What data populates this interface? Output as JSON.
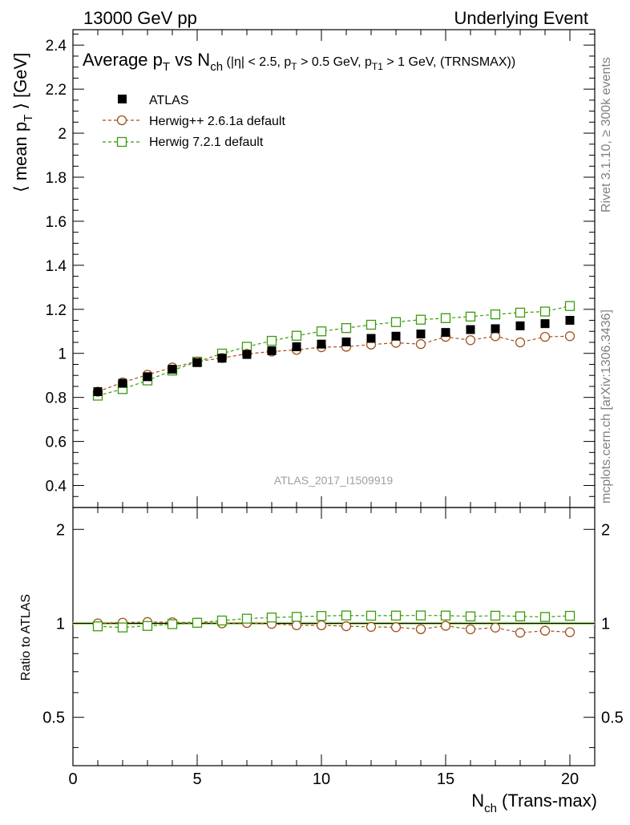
{
  "header": {
    "left": "13000 GeV pp",
    "right": "Underlying Event"
  },
  "side_labels": {
    "rivet": "Rivet 3.1.10, ≥ 300k events",
    "mcplots": "mcplots.cern.ch [arXiv:1306.3436]"
  },
  "watermark": "ATLAS_2017_I1509919",
  "chart_data": [
    {
      "type": "scatter",
      "title_main": "Average p",
      "title_main_sub": "T",
      "title_vs": " vs N",
      "title_vs_sub": "ch",
      "title_cuts": " (|η| < 2.5, p",
      "title_cuts_sub": "T",
      "title_cuts2": " > 0.5 GeV, p",
      "title_cuts2_sub": "T1",
      "title_cuts3": " > 1 GeV, (TRNSMAX))",
      "ylabel_pre": "⟨ mean p",
      "ylabel_sub": "T",
      "ylabel_post": " ⟩ [GeV]",
      "xlim": [
        0,
        21
      ],
      "ylim": [
        0.3,
        2.47
      ],
      "yticks": [
        "0.4",
        "0.6",
        "0.8",
        "1",
        "1.2",
        "1.4",
        "1.6",
        "1.8",
        "2",
        "2.2",
        "2.4"
      ],
      "legend_position": "top-left",
      "series": [
        {
          "name": "ATLAS",
          "marker": "filled-square",
          "color": "#000000",
          "x": [
            1,
            2,
            3,
            4,
            5,
            6,
            7,
            8,
            9,
            10,
            11,
            12,
            13,
            14,
            15,
            16,
            17,
            18,
            19,
            20
          ],
          "y": [
            0.826,
            0.864,
            0.894,
            0.928,
            0.958,
            0.978,
            0.995,
            1.012,
            1.03,
            1.042,
            1.052,
            1.068,
            1.078,
            1.088,
            1.095,
            1.108,
            1.112,
            1.125,
            1.135,
            1.15
          ]
        },
        {
          "name": "Herwig++ 2.6.1a default",
          "marker": "open-circle",
          "color": "#a0521c",
          "x": [
            1,
            2,
            3,
            4,
            5,
            6,
            7,
            8,
            9,
            10,
            11,
            12,
            13,
            14,
            15,
            16,
            17,
            18,
            19,
            20
          ],
          "y": [
            0.826,
            0.868,
            0.903,
            0.936,
            0.963,
            0.979,
            0.998,
            1.008,
            1.016,
            1.028,
            1.03,
            1.04,
            1.048,
            1.042,
            1.075,
            1.06,
            1.078,
            1.05,
            1.075,
            1.078
          ]
        },
        {
          "name": "Herwig 7.2.1 default",
          "marker": "open-square",
          "color": "#3a9b0c",
          "x": [
            1,
            2,
            3,
            4,
            5,
            6,
            7,
            8,
            9,
            10,
            11,
            12,
            13,
            14,
            15,
            16,
            17,
            18,
            19,
            20
          ],
          "y": [
            0.808,
            0.838,
            0.877,
            0.922,
            0.962,
            0.999,
            1.03,
            1.057,
            1.08,
            1.1,
            1.115,
            1.13,
            1.142,
            1.153,
            1.16,
            1.167,
            1.177,
            1.185,
            1.19,
            1.215
          ]
        }
      ]
    },
    {
      "type": "scatter",
      "ylabel": "Ratio to ATLAS",
      "xlabel_pre": "N",
      "xlabel_sub": "ch",
      "xlabel_post": " (Trans-max)",
      "xlim": [
        0,
        21
      ],
      "xticks": [
        "0",
        "5",
        "10",
        "15",
        "20"
      ],
      "ylim": [
        0.35,
        2.35
      ],
      "ylog": true,
      "yticks": [
        "0.5",
        "1",
        "2"
      ],
      "reference_line": 1,
      "series": [
        {
          "name": "Herwig++ 2.6.1a default",
          "marker": "open-circle",
          "color": "#a0521c",
          "x": [
            1,
            2,
            3,
            4,
            5,
            6,
            7,
            8,
            9,
            10,
            11,
            12,
            13,
            14,
            15,
            16,
            17,
            18,
            19,
            20
          ],
          "y": [
            1.0,
            1.005,
            1.01,
            1.008,
            1.005,
            1.0,
            1.003,
            0.996,
            0.986,
            0.986,
            0.979,
            0.974,
            0.972,
            0.958,
            0.982,
            0.957,
            0.969,
            0.933,
            0.947,
            0.937
          ]
        },
        {
          "name": "Herwig 7.2.1 default",
          "marker": "open-square",
          "color": "#3a9b0c",
          "x": [
            1,
            2,
            3,
            4,
            5,
            6,
            7,
            8,
            9,
            10,
            11,
            12,
            13,
            14,
            15,
            16,
            17,
            18,
            19,
            20
          ],
          "y": [
            0.978,
            0.97,
            0.981,
            0.994,
            1.004,
            1.021,
            1.035,
            1.044,
            1.049,
            1.056,
            1.06,
            1.058,
            1.059,
            1.06,
            1.059,
            1.053,
            1.058,
            1.053,
            1.048,
            1.057
          ]
        }
      ]
    }
  ]
}
